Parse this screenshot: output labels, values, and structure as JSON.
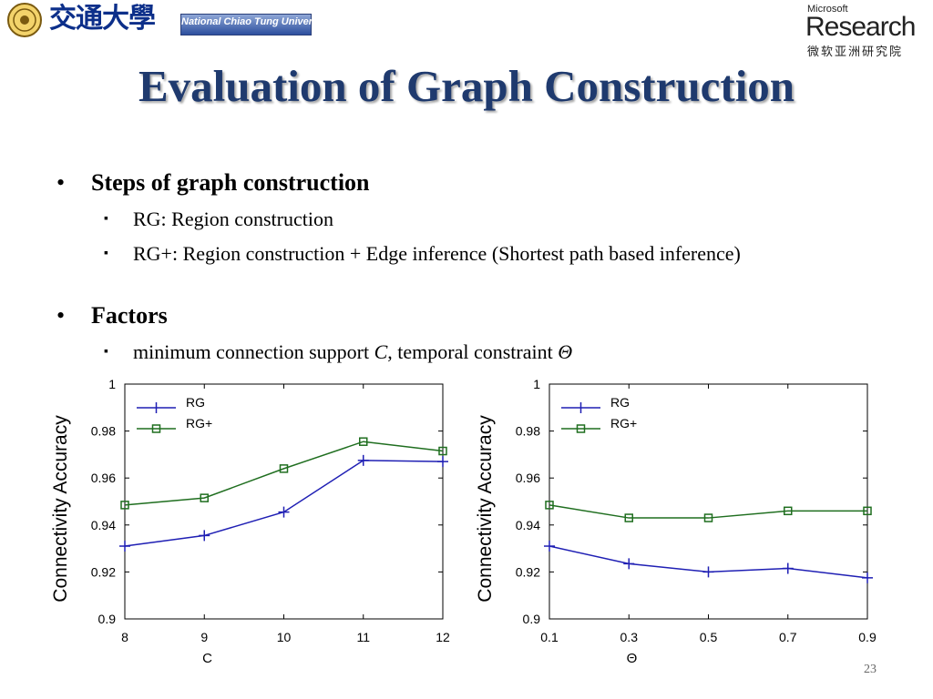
{
  "header": {
    "university_chars": "交通大學",
    "university_name": "National Chiao Tung University",
    "ms_label": "Microsoft",
    "research_label": "Research",
    "msra_chinese": "微软亚洲研究院"
  },
  "title": "Evaluation of Graph Construction",
  "bullets": {
    "steps_heading": "Steps of graph construction",
    "steps_items": [
      "RG: Region construction",
      "RG+: Region construction + Edge inference (Shortest path based inference)"
    ],
    "factors_heading": "Factors",
    "factors_item_prefix": "minimum connection support ",
    "factors_item_c": "C",
    "factors_item_mid": ", temporal constraint ",
    "factors_item_theta": "Θ"
  },
  "bullet_glyph": "•",
  "sub_bullet_glyph": "▪",
  "page_number": "23",
  "colors": {
    "rg": "#1f1fb4",
    "rg_plus": "#1f6e1f",
    "title": "#1f3a6e"
  },
  "chart_data": [
    {
      "type": "line",
      "x": [
        8,
        9,
        10,
        11,
        12
      ],
      "xticks": [
        "8",
        "9",
        "10",
        "11",
        "12"
      ],
      "xlabel": "C",
      "ylabel": "Connectivity Accuracy",
      "ylim": [
        0.9,
        1
      ],
      "yticks": [
        "0.9",
        "0.92",
        "0.94",
        "0.96",
        "0.98",
        "1"
      ],
      "legend": "top-left",
      "series": [
        {
          "name": "RG",
          "marker": "plus",
          "values": [
            0.931,
            0.9355,
            0.9455,
            0.9675,
            0.967
          ]
        },
        {
          "name": "RG+",
          "marker": "square",
          "values": [
            0.9485,
            0.9515,
            0.964,
            0.9755,
            0.9715
          ]
        }
      ]
    },
    {
      "type": "line",
      "x": [
        0.1,
        0.3,
        0.5,
        0.7,
        0.9
      ],
      "xticks": [
        "0.1",
        "0.3",
        "0.5",
        "0.7",
        "0.9"
      ],
      "xlabel": "Θ",
      "ylabel": "Connectivity Accuracy",
      "ylim": [
        0.9,
        1
      ],
      "yticks": [
        "0.9",
        "0.92",
        "0.94",
        "0.96",
        "0.98",
        "1"
      ],
      "legend": "top-left",
      "series": [
        {
          "name": "RG",
          "marker": "plus",
          "values": [
            0.931,
            0.9235,
            0.92,
            0.9215,
            0.9175
          ]
        },
        {
          "name": "RG+",
          "marker": "square",
          "values": [
            0.9485,
            0.943,
            0.943,
            0.946,
            0.946
          ]
        }
      ]
    }
  ]
}
